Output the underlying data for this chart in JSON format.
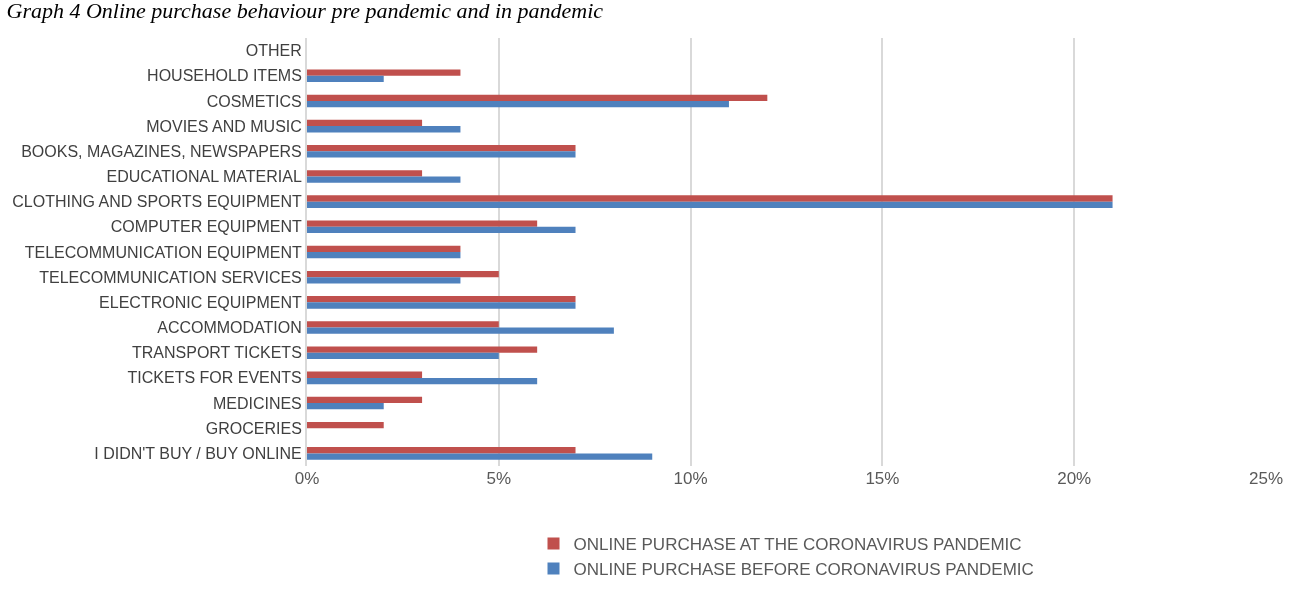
{
  "chart_data": {
    "type": "bar",
    "orientation": "horizontal",
    "title": "Graph 4 Online purchase behaviour pre pandemic and in pandemic",
    "categories": [
      "OTHER",
      "HOUSEHOLD ITEMS",
      "COSMETICS",
      "MOVIES AND MUSIC",
      "BOOKS, MAGAZINES, NEWSPAPERS",
      "EDUCATIONAL MATERIAL",
      "CLOTHING AND SPORTS EQUIPMENT",
      "COMPUTER EQUIPMENT",
      "TELECOMMUNICATION EQUIPMENT",
      "TELECOMMUNICATION SERVICES",
      "ELECTRONIC EQUIPMENT",
      "ACCOMMODATION",
      "TRANSPORT TICKETS",
      "TICKETS FOR EVENTS",
      "MEDICINES",
      "GROCERIES",
      "I DIDN'T BUY / BUY ONLINE"
    ],
    "series": [
      {
        "name": "ONLINE PURCHASE AT THE CORONAVIRUS PANDEMIC",
        "color": "#c0504d",
        "values": [
          0,
          4,
          12,
          3,
          7,
          3,
          21,
          6,
          4,
          5,
          7,
          5,
          6,
          3,
          3,
          2,
          7
        ]
      },
      {
        "name": "ONLINE PURCHASE BEFORE CORONAVIRUS PANDEMIC",
        "color": "#4f81bd",
        "values": [
          0,
          2,
          11,
          4,
          7,
          4,
          21,
          7,
          4,
          4,
          7,
          8,
          5,
          6,
          2,
          0,
          9
        ]
      }
    ],
    "xlim": [
      0,
      25
    ],
    "xticks": [
      {
        "value": 0,
        "label": "0%"
      },
      {
        "value": 5,
        "label": "5%"
      },
      {
        "value": 10,
        "label": "10%"
      },
      {
        "value": 15,
        "label": "15%"
      },
      {
        "value": 20,
        "label": "20%"
      },
      {
        "value": 25,
        "label": "25%"
      }
    ],
    "grid": "x",
    "legend": "bottom"
  }
}
